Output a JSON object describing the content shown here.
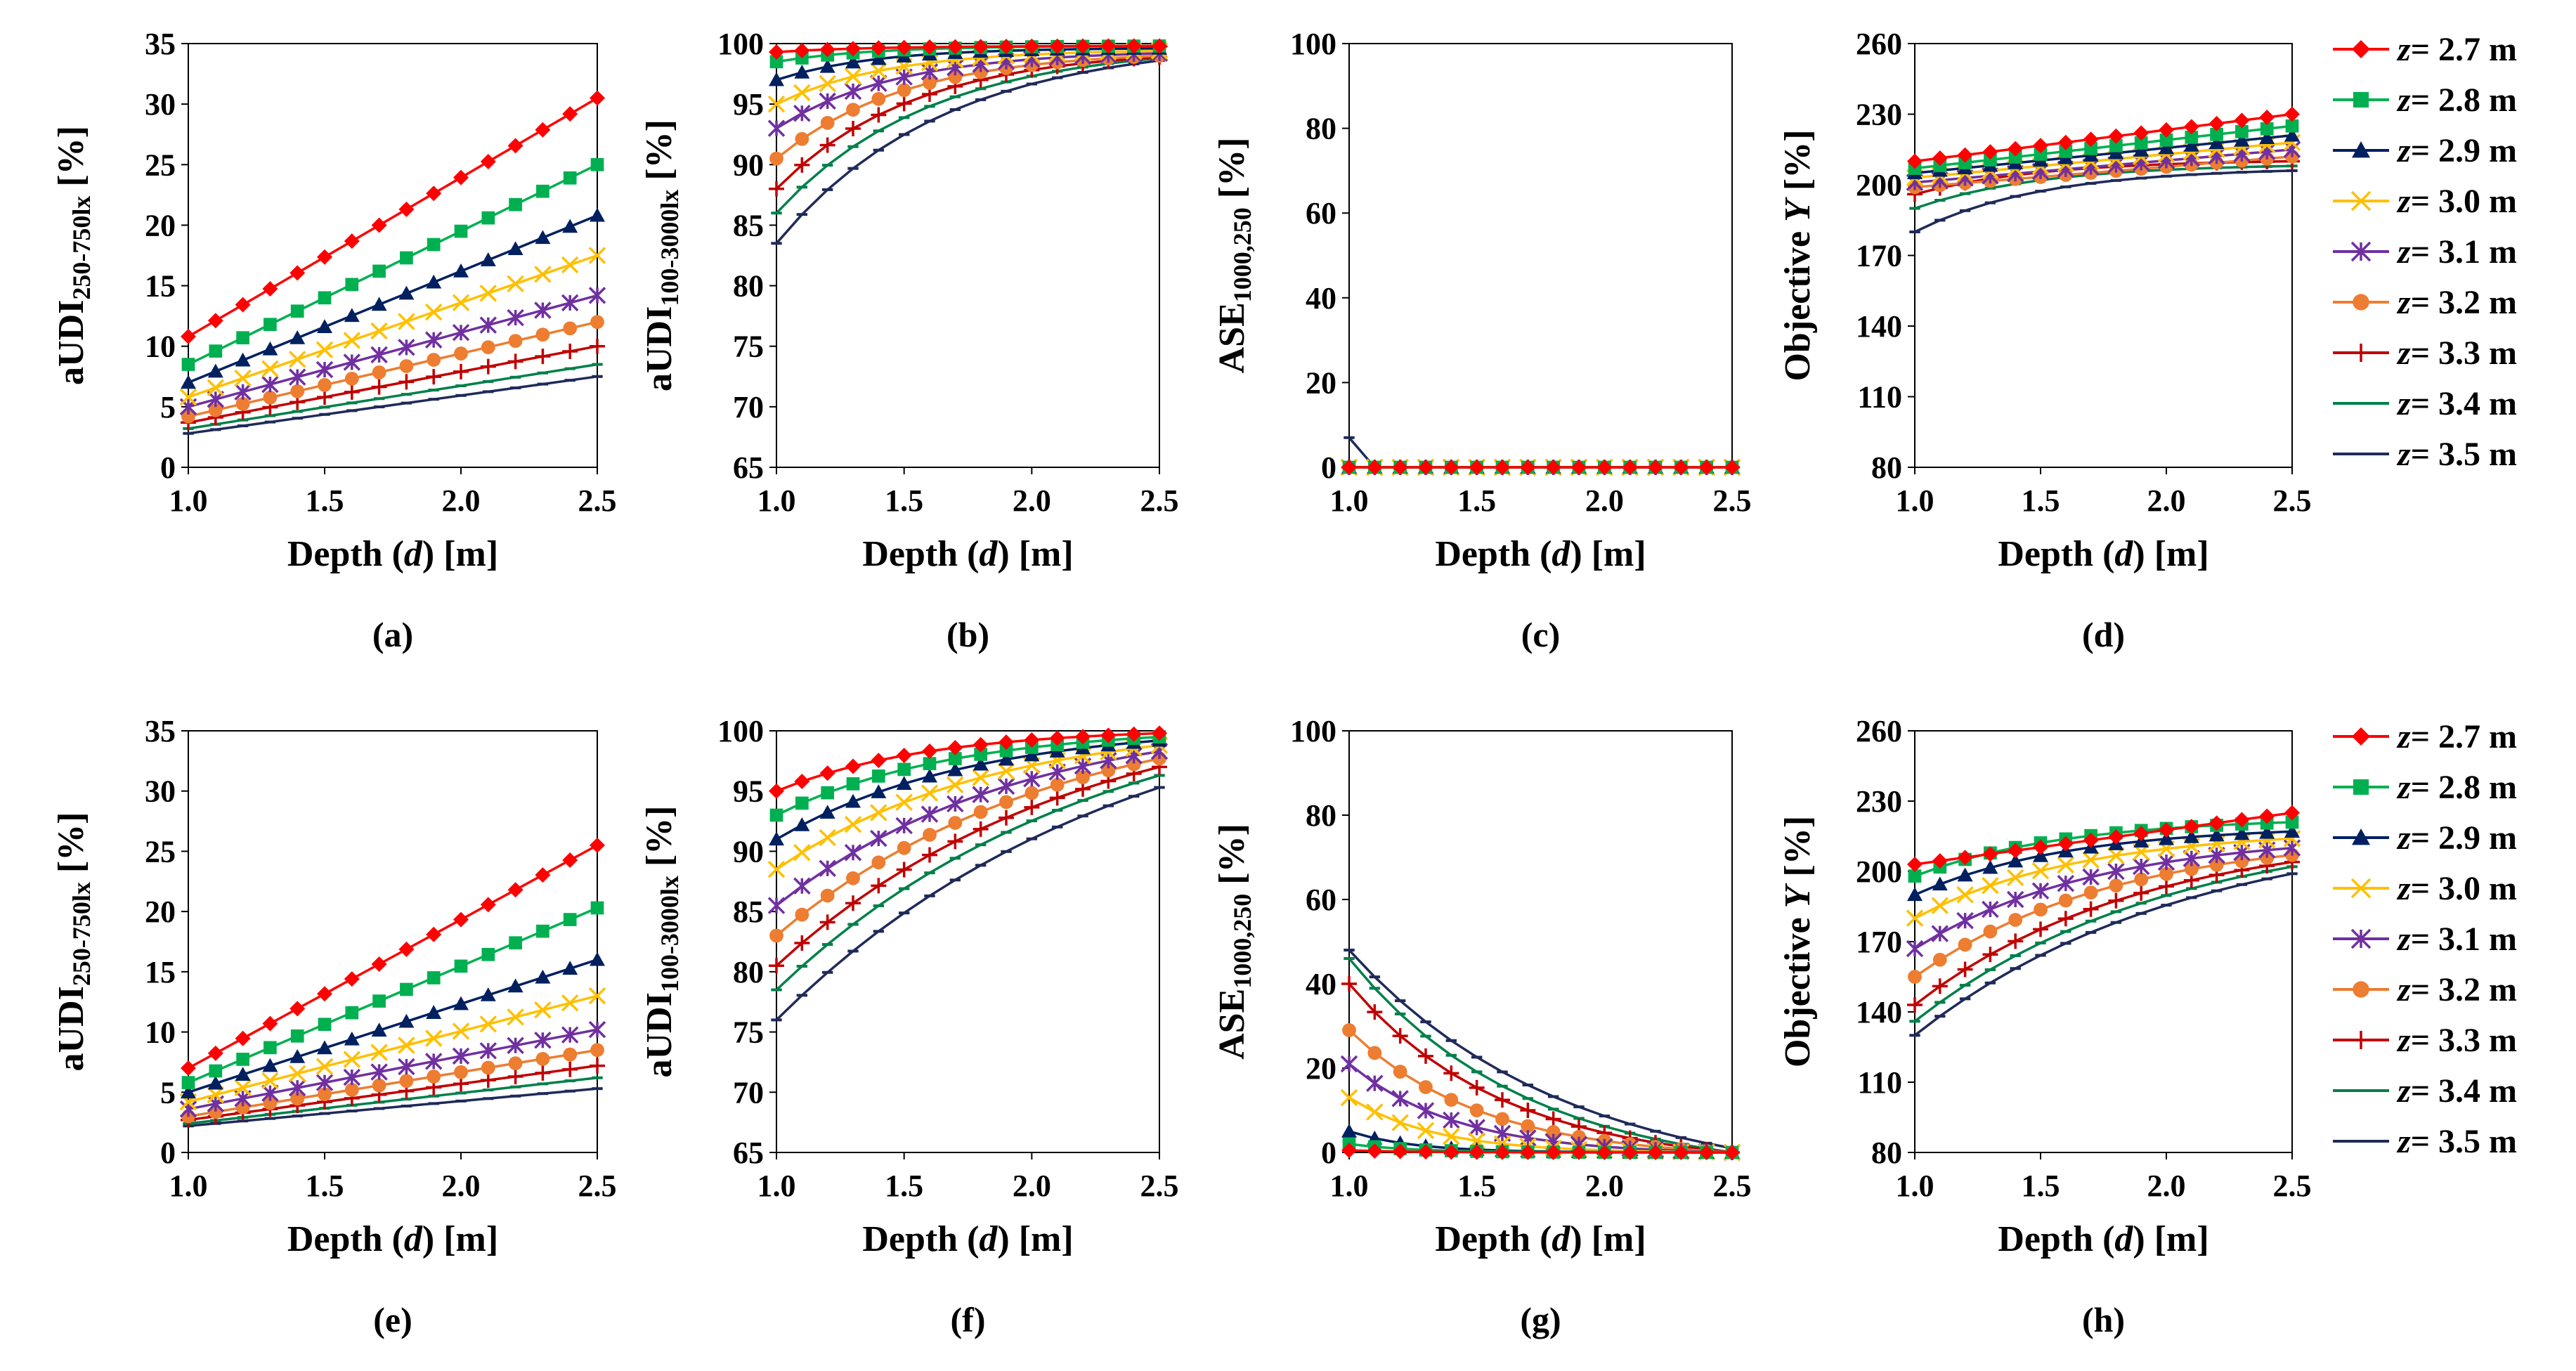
{
  "figure": {
    "xlabel_pre": "Depth (",
    "xlabel_var": "d",
    "xlabel_post": ") [m]",
    "legend_var": "z",
    "legend_unit": " m",
    "legend_entries": [
      "= 2.7",
      "= 2.8",
      "= 2.9",
      "= 3.0",
      "= 3.1",
      "= 3.2",
      "= 3.3",
      "= 3.4",
      "= 3.5"
    ]
  },
  "series_style": [
    {
      "name": "z= 2.7 m",
      "color": "#ff0000",
      "marker": "diamond-icon"
    },
    {
      "name": "z= 2.8 m",
      "color": "#00b050",
      "marker": "square-icon"
    },
    {
      "name": "z= 2.9 m",
      "color": "#002060",
      "marker": "triangle-icon"
    },
    {
      "name": "z= 3.0 m",
      "color": "#ffc000",
      "marker": "x-icon"
    },
    {
      "name": "z= 3.1 m",
      "color": "#7030a0",
      "marker": "asterisk-icon"
    },
    {
      "name": "z= 3.2 m",
      "color": "#ed7d31",
      "marker": "circle-icon"
    },
    {
      "name": "z= 3.3 m",
      "color": "#c00000",
      "marker": "plus-icon"
    },
    {
      "name": "z= 3.4 m",
      "color": "#00804a",
      "marker": "dash-icon"
    },
    {
      "name": "z= 3.5 m",
      "color": "#1f2a5a",
      "marker": "dash-icon"
    }
  ],
  "chart_data": [
    {
      "panel": "(a)",
      "type": "line",
      "ylabel_main": "aUDI",
      "ylabel_sub": "250-750lx",
      "ylabel_unit": " [%]",
      "ylim": [
        0,
        35
      ],
      "yticks": [
        0,
        5,
        10,
        15,
        20,
        25,
        30,
        35
      ],
      "xlim": [
        1.0,
        2.5
      ],
      "xticks": [
        1.0,
        1.5,
        2.0,
        2.5
      ],
      "xtick_labels": [
        "1.0",
        "1.5",
        "2.0",
        "2.5"
      ],
      "series": [
        {
          "name": "z= 2.7 m",
          "start": 10.8,
          "end": 30.5,
          "shape": "linear"
        },
        {
          "name": "z= 2.8 m",
          "start": 8.5,
          "end": 25.0,
          "shape": "linear"
        },
        {
          "name": "z= 2.9 m",
          "start": 7.0,
          "end": 20.8,
          "shape": "linear"
        },
        {
          "name": "z= 3.0 m",
          "start": 5.8,
          "end": 17.5,
          "shape": "linear"
        },
        {
          "name": "z= 3.1 m",
          "start": 5.0,
          "end": 14.2,
          "shape": "linear"
        },
        {
          "name": "z= 3.2 m",
          "start": 4.2,
          "end": 12.0,
          "shape": "linear"
        },
        {
          "name": "z= 3.3 m",
          "start": 3.7,
          "end": 10.0,
          "shape": "linear"
        },
        {
          "name": "z= 3.4 m",
          "start": 3.2,
          "end": 8.5,
          "shape": "linear"
        },
        {
          "name": "z= 3.5 m",
          "start": 2.8,
          "end": 7.5,
          "shape": "linear"
        }
      ]
    },
    {
      "panel": "(b)",
      "type": "line",
      "ylabel_main": "aUDI",
      "ylabel_sub": "100-3000lx",
      "ylabel_unit": " [%]",
      "ylim": [
        65,
        100
      ],
      "yticks": [
        65,
        70,
        75,
        80,
        85,
        90,
        95,
        100
      ],
      "xlim": [
        1.0,
        2.5
      ],
      "xticks": [
        1.0,
        1.5,
        2.0,
        2.5
      ],
      "xtick_labels": [
        "1.0",
        "1.5",
        "2.0",
        "2.5"
      ],
      "series": [
        {
          "name": "z= 2.7 m",
          "start": 99.3,
          "end": 99.8,
          "shape": "sat",
          "k": 4
        },
        {
          "name": "z= 2.8 m",
          "start": 98.5,
          "end": 99.8,
          "shape": "sat",
          "k": 4
        },
        {
          "name": "z= 2.9 m",
          "start": 97.0,
          "end": 99.6,
          "shape": "sat",
          "k": 4
        },
        {
          "name": "z= 3.0 m",
          "start": 95.0,
          "end": 99.4,
          "shape": "sat",
          "k": 3.5
        },
        {
          "name": "z= 3.1 m",
          "start": 93.0,
          "end": 99.2,
          "shape": "sat",
          "k": 3.2
        },
        {
          "name": "z= 3.2 m",
          "start": 90.5,
          "end": 99.0,
          "shape": "sat",
          "k": 3
        },
        {
          "name": "z= 3.3 m",
          "start": 88.0,
          "end": 98.9,
          "shape": "sat",
          "k": 2.8
        },
        {
          "name": "z= 3.4 m",
          "start": 86.0,
          "end": 98.8,
          "shape": "sat",
          "k": 2.5
        },
        {
          "name": "z= 3.5 m",
          "start": 83.5,
          "end": 98.6,
          "shape": "sat",
          "k": 2.3
        }
      ]
    },
    {
      "panel": "(c)",
      "type": "line",
      "ylabel_main": "ASE",
      "ylabel_sub": "1000,250",
      "ylabel_unit": " [%]",
      "ylim": [
        0,
        100
      ],
      "yticks": [
        0,
        20,
        40,
        60,
        80,
        100
      ],
      "xlim": [
        1.0,
        2.5
      ],
      "xticks": [
        1.0,
        1.5,
        2.0,
        2.5
      ],
      "xtick_labels": [
        "1.0",
        "1.5",
        "2.0",
        "2.5"
      ],
      "series": [
        {
          "name": "z= 2.7 m",
          "start": 0,
          "end": 0,
          "shape": "linear"
        },
        {
          "name": "z= 2.8 m",
          "start": 0,
          "end": 0,
          "shape": "linear"
        },
        {
          "name": "z= 2.9 m",
          "start": 0,
          "end": 0,
          "shape": "linear"
        },
        {
          "name": "z= 3.0 m",
          "start": 0,
          "end": 0,
          "shape": "linear"
        },
        {
          "name": "z= 3.1 m",
          "start": 0,
          "end": 0,
          "shape": "linear"
        },
        {
          "name": "z= 3.2 m",
          "start": 0,
          "end": 0,
          "shape": "linear"
        },
        {
          "name": "z= 3.3 m",
          "start": 0,
          "end": 0,
          "shape": "linear"
        },
        {
          "name": "z= 3.4 m",
          "start": 0,
          "end": 0,
          "shape": "linear"
        },
        {
          "name": "z= 3.5 m",
          "start": 7,
          "end": 0,
          "shape": "spike"
        }
      ]
    },
    {
      "panel": "(d)",
      "type": "line",
      "ylabel_main": "Objective ",
      "ylabel_var": "Y",
      "ylabel_unit": " [%]",
      "ylim": [
        80,
        260
      ],
      "yticks": [
        80,
        110,
        140,
        170,
        200,
        230,
        260
      ],
      "xlim": [
        1.0,
        2.5
      ],
      "xticks": [
        1.0,
        1.5,
        2.0,
        2.5
      ],
      "xtick_labels": [
        "1.0",
        "1.5",
        "2.0",
        "2.5"
      ],
      "series": [
        {
          "name": "z= 2.7 m",
          "start": 210,
          "end": 230,
          "shape": "linear"
        },
        {
          "name": "z= 2.8 m",
          "start": 207,
          "end": 225,
          "shape": "linear"
        },
        {
          "name": "z= 2.9 m",
          "start": 205,
          "end": 221,
          "shape": "linear"
        },
        {
          "name": "z= 3.0 m",
          "start": 203,
          "end": 218,
          "shape": "linear"
        },
        {
          "name": "z= 3.1 m",
          "start": 201,
          "end": 215,
          "shape": "linear"
        },
        {
          "name": "z= 3.2 m",
          "start": 199,
          "end": 212,
          "shape": "linear"
        },
        {
          "name": "z= 3.3 m",
          "start": 196,
          "end": 210,
          "shape": "sat",
          "k": 3
        },
        {
          "name": "z= 3.4 m",
          "start": 190,
          "end": 208,
          "shape": "sat",
          "k": 3
        },
        {
          "name": "z= 3.5 m",
          "start": 180,
          "end": 206,
          "shape": "sat",
          "k": 3
        }
      ]
    },
    {
      "panel": "(e)",
      "type": "line",
      "ylabel_main": "aUDI",
      "ylabel_sub": "250-750lx",
      "ylabel_unit": " [%]",
      "ylim": [
        0,
        35
      ],
      "yticks": [
        0,
        5,
        10,
        15,
        20,
        25,
        30,
        35
      ],
      "xlim": [
        1.0,
        2.5
      ],
      "xticks": [
        1.0,
        1.5,
        2.0,
        2.5
      ],
      "xtick_labels": [
        "1.0",
        "1.5",
        "2.0",
        "2.5"
      ],
      "series": [
        {
          "name": "z= 2.7 m",
          "start": 7.0,
          "end": 25.5,
          "shape": "linear"
        },
        {
          "name": "z= 2.8 m",
          "start": 5.8,
          "end": 20.3,
          "shape": "linear"
        },
        {
          "name": "z= 2.9 m",
          "start": 5.0,
          "end": 16.0,
          "shape": "linear"
        },
        {
          "name": "z= 3.0 m",
          "start": 4.2,
          "end": 13.0,
          "shape": "linear"
        },
        {
          "name": "z= 3.1 m",
          "start": 3.6,
          "end": 10.2,
          "shape": "linear"
        },
        {
          "name": "z= 3.2 m",
          "start": 3.0,
          "end": 8.5,
          "shape": "linear"
        },
        {
          "name": "z= 3.3 m",
          "start": 2.7,
          "end": 7.2,
          "shape": "linear"
        },
        {
          "name": "z= 3.4 m",
          "start": 2.4,
          "end": 6.2,
          "shape": "linear"
        },
        {
          "name": "z= 3.5 m",
          "start": 2.2,
          "end": 5.3,
          "shape": "linear"
        }
      ]
    },
    {
      "panel": "(f)",
      "type": "line",
      "ylabel_main": "aUDI",
      "ylabel_sub": "100-3000lx",
      "ylabel_unit": " [%]",
      "ylim": [
        65,
        100
      ],
      "yticks": [
        65,
        70,
        75,
        80,
        85,
        90,
        95,
        100
      ],
      "xlim": [
        1.0,
        2.5
      ],
      "xticks": [
        1.0,
        1.5,
        2.0,
        2.5
      ],
      "xtick_labels": [
        "1.0",
        "1.5",
        "2.0",
        "2.5"
      ],
      "series": [
        {
          "name": "z= 2.7 m",
          "start": 95.0,
          "end": 99.8,
          "shape": "sat",
          "k": 2.5
        },
        {
          "name": "z= 2.8 m",
          "start": 93.0,
          "end": 99.5,
          "shape": "sat",
          "k": 2.2
        },
        {
          "name": "z= 2.9 m",
          "start": 91.0,
          "end": 99.2,
          "shape": "sat",
          "k": 2.0
        },
        {
          "name": "z= 3.0 m",
          "start": 88.5,
          "end": 98.8,
          "shape": "sat",
          "k": 1.8
        },
        {
          "name": "z= 3.1 m",
          "start": 85.5,
          "end": 98.3,
          "shape": "sat",
          "k": 1.6
        },
        {
          "name": "z= 3.2 m",
          "start": 83.0,
          "end": 97.7,
          "shape": "sat",
          "k": 1.4
        },
        {
          "name": "z= 3.3 m",
          "start": 80.5,
          "end": 97.0,
          "shape": "sat",
          "k": 1.3
        },
        {
          "name": "z= 3.4 m",
          "start": 78.5,
          "end": 96.3,
          "shape": "sat",
          "k": 1.2
        },
        {
          "name": "z= 3.5 m",
          "start": 76.0,
          "end": 95.3,
          "shape": "sat",
          "k": 1.1
        }
      ]
    },
    {
      "panel": "(g)",
      "type": "line",
      "ylabel_main": "ASE",
      "ylabel_sub": "1000,250",
      "ylabel_unit": " [%]",
      "ylim": [
        0,
        100
      ],
      "yticks": [
        0,
        20,
        40,
        60,
        80,
        100
      ],
      "xlim": [
        1.0,
        2.5
      ],
      "xticks": [
        1.0,
        1.5,
        2.0,
        2.5
      ],
      "xtick_labels": [
        "1.0",
        "1.5",
        "2.0",
        "2.5"
      ],
      "series": [
        {
          "name": "z= 2.7 m",
          "start": 0.5,
          "end": 0,
          "shape": "decay",
          "k": 6
        },
        {
          "name": "z= 2.8 m",
          "start": 2,
          "end": 0,
          "shape": "decay",
          "k": 6
        },
        {
          "name": "z= 2.9 m",
          "start": 5,
          "end": 0,
          "shape": "decay",
          "k": 6
        },
        {
          "name": "z= 3.0 m",
          "start": 13,
          "end": 0,
          "shape": "decay",
          "k": 4.5
        },
        {
          "name": "z= 3.1 m",
          "start": 21,
          "end": 0,
          "shape": "decay",
          "k": 3.6
        },
        {
          "name": "z= 3.2 m",
          "start": 29,
          "end": 0,
          "shape": "decay",
          "k": 2.9
        },
        {
          "name": "z= 3.3 m",
          "start": 40,
          "end": 0,
          "shape": "decay",
          "k": 2.5
        },
        {
          "name": "z= 3.4 m",
          "start": 46,
          "end": 0,
          "shape": "decay",
          "k": 2.2
        },
        {
          "name": "z= 3.5 m",
          "start": 48,
          "end": 1,
          "shape": "decay",
          "k": 1.8
        }
      ]
    },
    {
      "panel": "(h)",
      "type": "line",
      "ylabel_main": "Objective ",
      "ylabel_var": "Y",
      "ylabel_unit": " [%]",
      "ylim": [
        80,
        260
      ],
      "yticks": [
        80,
        110,
        140,
        170,
        200,
        230,
        260
      ],
      "xlim": [
        1.0,
        2.5
      ],
      "xticks": [
        1.0,
        1.5,
        2.0,
        2.5
      ],
      "xtick_labels": [
        "1.0",
        "1.5",
        "2.0",
        "2.5"
      ],
      "series": [
        {
          "name": "z= 2.7 m",
          "start": 203,
          "end": 225,
          "shape": "linear"
        },
        {
          "name": "z= 2.8 m",
          "start": 198,
          "end": 221,
          "shape": "sat",
          "k": 2.5
        },
        {
          "name": "z= 2.9 m",
          "start": 190,
          "end": 217,
          "shape": "sat",
          "k": 2.5
        },
        {
          "name": "z= 3.0 m",
          "start": 180,
          "end": 214,
          "shape": "sat",
          "k": 2.3
        },
        {
          "name": "z= 3.1 m",
          "start": 167,
          "end": 210,
          "shape": "sat",
          "k": 2.1
        },
        {
          "name": "z= 3.2 m",
          "start": 155,
          "end": 207,
          "shape": "sat",
          "k": 1.9
        },
        {
          "name": "z= 3.3 m",
          "start": 143,
          "end": 204,
          "shape": "sat",
          "k": 1.7
        },
        {
          "name": "z= 3.4 m",
          "start": 136,
          "end": 202,
          "shape": "sat",
          "k": 1.5
        },
        {
          "name": "z= 3.5 m",
          "start": 130,
          "end": 199,
          "shape": "sat",
          "k": 1.4
        }
      ]
    }
  ]
}
